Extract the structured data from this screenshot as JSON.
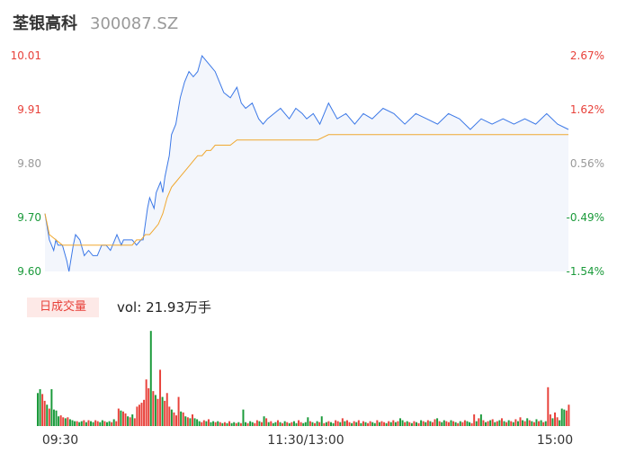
{
  "header": {
    "name": "荃银高科",
    "code": "300087.SZ"
  },
  "volume_panel": {
    "tab_label": "日成交量",
    "vol_prefix": "vol:",
    "vol_value": "21.93万手"
  },
  "colors": {
    "up": "#e8413a",
    "down": "#1a9a3a",
    "price_line": "#3b78e7",
    "avg_line": "#f0a830",
    "area": "#f3f6fc",
    "neutral_text": "#999999"
  },
  "chart_data": {
    "type": "line",
    "title": "",
    "ylim": [
      9.6,
      10.01
    ],
    "y_ticks": [
      "10.01",
      "9.91",
      "9.80",
      "9.70",
      "9.60"
    ],
    "y_tick_colors": [
      "#e8413a",
      "#e8413a",
      "#999999",
      "#1a9a3a",
      "#1a9a3a"
    ],
    "pct_ticks": [
      "2.67%",
      "1.62%",
      "0.56%",
      "-0.49%",
      "-1.54%"
    ],
    "x_ticks": [
      "09:30",
      "11:30/13:00",
      "15:00"
    ],
    "total_minutes": 240,
    "series": [
      {
        "type": "line",
        "x": [
          0,
          2,
          3,
          4,
          5,
          6,
          8,
          10,
          11,
          13,
          14,
          16,
          18,
          20,
          22,
          24,
          26,
          28,
          30,
          32,
          33,
          35,
          36,
          38,
          40,
          42,
          44,
          45,
          47,
          48,
          50,
          51,
          52,
          53,
          54,
          55,
          56,
          57,
          58,
          60,
          62,
          64,
          66,
          68,
          70,
          72,
          74,
          76,
          78,
          80,
          82,
          85,
          88,
          90,
          92,
          95,
          98,
          100,
          102,
          105,
          108,
          110,
          112,
          115,
          118,
          120,
          123,
          126,
          130,
          134,
          138,
          142,
          146,
          150,
          155,
          160,
          165,
          170,
          175,
          180,
          185,
          190,
          195,
          200,
          205,
          210,
          215,
          220,
          225,
          230,
          235,
          240
        ],
        "values": [
          9.71,
          9.66,
          9.65,
          9.64,
          9.66,
          9.65,
          9.65,
          9.62,
          9.6,
          9.65,
          9.67,
          9.66,
          9.63,
          9.64,
          9.63,
          9.63,
          9.65,
          9.65,
          9.64,
          9.66,
          9.67,
          9.65,
          9.66,
          9.66,
          9.66,
          9.65,
          9.66,
          9.66,
          9.72,
          9.74,
          9.72,
          9.75,
          9.76,
          9.77,
          9.75,
          9.78,
          9.8,
          9.82,
          9.86,
          9.88,
          9.93,
          9.96,
          9.98,
          9.97,
          9.98,
          10.01,
          10.0,
          9.99,
          9.98,
          9.96,
          9.94,
          9.93,
          9.95,
          9.92,
          9.91,
          9.92,
          9.89,
          9.88,
          9.89,
          9.9,
          9.91,
          9.9,
          9.89,
          9.91,
          9.9,
          9.89,
          9.9,
          9.88,
          9.92,
          9.89,
          9.9,
          9.88,
          9.9,
          9.89,
          9.91,
          9.9,
          9.88,
          9.9,
          9.89,
          9.88,
          9.9,
          9.89,
          9.87,
          9.89,
          9.88,
          9.89,
          9.88,
          9.89,
          9.88,
          9.9,
          9.88,
          9.87
        ]
      },
      {
        "type": "line",
        "x": [
          0,
          2,
          8,
          18,
          25,
          30,
          35,
          38,
          40,
          42,
          44,
          46,
          48,
          50,
          52,
          54,
          56,
          58,
          60,
          62,
          64,
          66,
          68,
          70,
          72,
          74,
          76,
          78,
          80,
          82,
          85,
          88,
          90,
          95,
          100,
          105,
          110,
          115,
          120,
          125,
          130,
          135,
          140,
          150,
          160,
          170,
          180,
          190,
          200,
          210,
          220,
          230,
          240
        ],
        "values": [
          9.71,
          9.67,
          9.65,
          9.65,
          9.65,
          9.65,
          9.65,
          9.65,
          9.65,
          9.66,
          9.66,
          9.67,
          9.67,
          9.68,
          9.69,
          9.71,
          9.74,
          9.76,
          9.77,
          9.78,
          9.79,
          9.8,
          9.81,
          9.82,
          9.82,
          9.83,
          9.83,
          9.84,
          9.84,
          9.84,
          9.84,
          9.85,
          9.85,
          9.85,
          9.85,
          9.85,
          9.85,
          9.85,
          9.85,
          9.85,
          9.86,
          9.86,
          9.86,
          9.86,
          9.86,
          9.86,
          9.86,
          9.86,
          9.86,
          9.86,
          9.86,
          9.86,
          9.86
        ]
      }
    ],
    "volume": {
      "max_hint": 1.0,
      "bars": [
        [
          0.34,
          "d"
        ],
        [
          0.38,
          "d"
        ],
        [
          0.33,
          "u"
        ],
        [
          0.26,
          "u"
        ],
        [
          0.22,
          "d"
        ],
        [
          0.18,
          "u"
        ],
        [
          0.38,
          "d"
        ],
        [
          0.17,
          "d"
        ],
        [
          0.16,
          "d"
        ],
        [
          0.1,
          "d"
        ],
        [
          0.11,
          "u"
        ],
        [
          0.09,
          "u"
        ],
        [
          0.08,
          "d"
        ],
        [
          0.09,
          "u"
        ],
        [
          0.07,
          "d"
        ],
        [
          0.06,
          "d"
        ],
        [
          0.05,
          "d"
        ],
        [
          0.05,
          "u"
        ],
        [
          0.04,
          "d"
        ],
        [
          0.05,
          "d"
        ],
        [
          0.06,
          "u"
        ],
        [
          0.04,
          "d"
        ],
        [
          0.06,
          "u"
        ],
        [
          0.05,
          "d"
        ],
        [
          0.04,
          "d"
        ],
        [
          0.06,
          "u"
        ],
        [
          0.05,
          "u"
        ],
        [
          0.04,
          "d"
        ],
        [
          0.06,
          "d"
        ],
        [
          0.05,
          "u"
        ],
        [
          0.04,
          "d"
        ],
        [
          0.05,
          "d"
        ],
        [
          0.04,
          "u"
        ],
        [
          0.07,
          "d"
        ],
        [
          0.05,
          "u"
        ],
        [
          0.18,
          "u"
        ],
        [
          0.16,
          "d"
        ],
        [
          0.15,
          "u"
        ],
        [
          0.13,
          "u"
        ],
        [
          0.1,
          "d"
        ],
        [
          0.09,
          "u"
        ],
        [
          0.12,
          "d"
        ],
        [
          0.08,
          "u"
        ],
        [
          0.2,
          "u"
        ],
        [
          0.22,
          "u"
        ],
        [
          0.24,
          "u"
        ],
        [
          0.27,
          "u"
        ],
        [
          0.48,
          "u"
        ],
        [
          0.39,
          "u"
        ],
        [
          0.98,
          "d"
        ],
        [
          0.36,
          "u"
        ],
        [
          0.32,
          "d"
        ],
        [
          0.28,
          "u"
        ],
        [
          0.58,
          "u"
        ],
        [
          0.3,
          "d"
        ],
        [
          0.26,
          "u"
        ],
        [
          0.34,
          "u"
        ],
        [
          0.2,
          "u"
        ],
        [
          0.17,
          "d"
        ],
        [
          0.14,
          "u"
        ],
        [
          0.11,
          "u"
        ],
        [
          0.3,
          "u"
        ],
        [
          0.15,
          "d"
        ],
        [
          0.14,
          "u"
        ],
        [
          0.1,
          "d"
        ],
        [
          0.09,
          "u"
        ],
        [
          0.08,
          "d"
        ],
        [
          0.12,
          "u"
        ],
        [
          0.08,
          "d"
        ],
        [
          0.07,
          "d"
        ],
        [
          0.05,
          "d"
        ],
        [
          0.04,
          "u"
        ],
        [
          0.06,
          "u"
        ],
        [
          0.05,
          "d"
        ],
        [
          0.07,
          "u"
        ],
        [
          0.04,
          "d"
        ],
        [
          0.05,
          "d"
        ],
        [
          0.04,
          "u"
        ],
        [
          0.05,
          "d"
        ],
        [
          0.04,
          "u"
        ],
        [
          0.03,
          "d"
        ],
        [
          0.04,
          "u"
        ],
        [
          0.03,
          "d"
        ],
        [
          0.05,
          "u"
        ],
        [
          0.03,
          "d"
        ],
        [
          0.04,
          "d"
        ],
        [
          0.03,
          "u"
        ],
        [
          0.04,
          "d"
        ],
        [
          0.03,
          "u"
        ],
        [
          0.17,
          "d"
        ],
        [
          0.04,
          "d"
        ],
        [
          0.03,
          "u"
        ],
        [
          0.05,
          "d"
        ],
        [
          0.04,
          "d"
        ],
        [
          0.03,
          "u"
        ],
        [
          0.06,
          "u"
        ],
        [
          0.05,
          "d"
        ],
        [
          0.04,
          "u"
        ],
        [
          0.1,
          "d"
        ],
        [
          0.08,
          "u"
        ],
        [
          0.04,
          "d"
        ],
        [
          0.05,
          "u"
        ],
        [
          0.03,
          "d"
        ],
        [
          0.04,
          "d"
        ],
        [
          0.06,
          "u"
        ],
        [
          0.04,
          "d"
        ],
        [
          0.03,
          "u"
        ],
        [
          0.05,
          "d"
        ],
        [
          0.04,
          "u"
        ],
        [
          0.03,
          "d"
        ],
        [
          0.04,
          "u"
        ],
        [
          0.05,
          "d"
        ],
        [
          0.03,
          "d"
        ],
        [
          0.06,
          "u"
        ],
        [
          0.04,
          "u"
        ],
        [
          0.03,
          "d"
        ],
        [
          0.04,
          "d"
        ],
        [
          0.09,
          "d"
        ],
        [
          0.05,
          "u"
        ],
        [
          0.04,
          "d"
        ],
        [
          0.03,
          "u"
        ],
        [
          0.05,
          "d"
        ],
        [
          0.04,
          "u"
        ],
        [
          0.1,
          "d"
        ],
        [
          0.03,
          "u"
        ],
        [
          0.04,
          "d"
        ],
        [
          0.05,
          "u"
        ],
        [
          0.04,
          "d"
        ],
        [
          0.03,
          "d"
        ],
        [
          0.06,
          "u"
        ],
        [
          0.05,
          "u"
        ],
        [
          0.04,
          "d"
        ],
        [
          0.08,
          "u"
        ],
        [
          0.05,
          "d"
        ],
        [
          0.06,
          "u"
        ],
        [
          0.04,
          "u"
        ],
        [
          0.03,
          "d"
        ],
        [
          0.05,
          "u"
        ],
        [
          0.04,
          "d"
        ],
        [
          0.06,
          "u"
        ],
        [
          0.03,
          "d"
        ],
        [
          0.05,
          "u"
        ],
        [
          0.04,
          "d"
        ],
        [
          0.03,
          "u"
        ],
        [
          0.05,
          "u"
        ],
        [
          0.04,
          "d"
        ],
        [
          0.03,
          "d"
        ],
        [
          0.06,
          "u"
        ],
        [
          0.04,
          "d"
        ],
        [
          0.05,
          "u"
        ],
        [
          0.04,
          "u"
        ],
        [
          0.03,
          "d"
        ],
        [
          0.05,
          "u"
        ],
        [
          0.04,
          "d"
        ],
        [
          0.06,
          "u"
        ],
        [
          0.04,
          "d"
        ],
        [
          0.05,
          "u"
        ],
        [
          0.08,
          "d"
        ],
        [
          0.06,
          "d"
        ],
        [
          0.04,
          "u"
        ],
        [
          0.05,
          "d"
        ],
        [
          0.04,
          "u"
        ],
        [
          0.03,
          "d"
        ],
        [
          0.05,
          "u"
        ],
        [
          0.04,
          "d"
        ],
        [
          0.03,
          "u"
        ],
        [
          0.06,
          "d"
        ],
        [
          0.05,
          "u"
        ],
        [
          0.04,
          "d"
        ],
        [
          0.06,
          "u"
        ],
        [
          0.05,
          "d"
        ],
        [
          0.04,
          "u"
        ],
        [
          0.07,
          "u"
        ],
        [
          0.08,
          "d"
        ],
        [
          0.05,
          "u"
        ],
        [
          0.04,
          "d"
        ],
        [
          0.06,
          "d"
        ],
        [
          0.05,
          "u"
        ],
        [
          0.04,
          "u"
        ],
        [
          0.06,
          "d"
        ],
        [
          0.05,
          "u"
        ],
        [
          0.04,
          "d"
        ],
        [
          0.03,
          "u"
        ],
        [
          0.05,
          "d"
        ],
        [
          0.04,
          "u"
        ],
        [
          0.06,
          "u"
        ],
        [
          0.05,
          "d"
        ],
        [
          0.04,
          "d"
        ],
        [
          0.03,
          "u"
        ],
        [
          0.12,
          "u"
        ],
        [
          0.05,
          "d"
        ],
        [
          0.08,
          "u"
        ],
        [
          0.12,
          "d"
        ],
        [
          0.06,
          "u"
        ],
        [
          0.04,
          "d"
        ],
        [
          0.05,
          "u"
        ],
        [
          0.06,
          "d"
        ],
        [
          0.07,
          "u"
        ],
        [
          0.04,
          "d"
        ],
        [
          0.05,
          "u"
        ],
        [
          0.06,
          "d"
        ],
        [
          0.08,
          "u"
        ],
        [
          0.05,
          "d"
        ],
        [
          0.04,
          "u"
        ],
        [
          0.06,
          "d"
        ],
        [
          0.05,
          "u"
        ],
        [
          0.04,
          "d"
        ],
        [
          0.07,
          "u"
        ],
        [
          0.05,
          "d"
        ],
        [
          0.09,
          "u"
        ],
        [
          0.06,
          "d"
        ],
        [
          0.05,
          "u"
        ],
        [
          0.08,
          "d"
        ],
        [
          0.06,
          "u"
        ],
        [
          0.05,
          "d"
        ],
        [
          0.04,
          "u"
        ],
        [
          0.07,
          "d"
        ],
        [
          0.05,
          "u"
        ],
        [
          0.06,
          "d"
        ],
        [
          0.04,
          "u"
        ],
        [
          0.05,
          "d"
        ],
        [
          0.4,
          "u"
        ],
        [
          0.12,
          "u"
        ],
        [
          0.08,
          "d"
        ],
        [
          0.14,
          "u"
        ],
        [
          0.09,
          "u"
        ],
        [
          0.06,
          "d"
        ],
        [
          0.18,
          "d"
        ],
        [
          0.17,
          "d"
        ],
        [
          0.16,
          "u"
        ],
        [
          0.22,
          "u"
        ]
      ]
    }
  }
}
